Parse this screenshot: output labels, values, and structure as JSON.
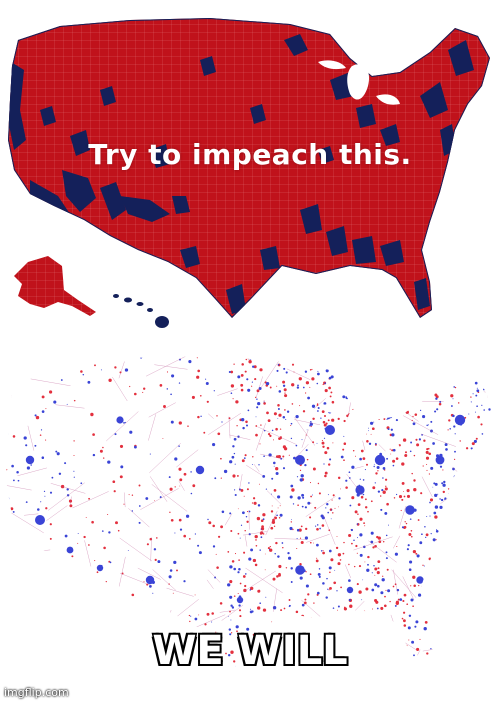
{
  "top_map": {
    "caption": "Try to impeach this.",
    "colors": {
      "majority": "#c0121b",
      "minority": "#14205a",
      "borders": "#f2a0a4"
    }
  },
  "bottom_map": {
    "caption": "WE WILL",
    "colors": {
      "red": "#e3303e",
      "blue": "#3a44d6",
      "background": "#ffffff"
    }
  },
  "watermark": "imgflip.com"
}
